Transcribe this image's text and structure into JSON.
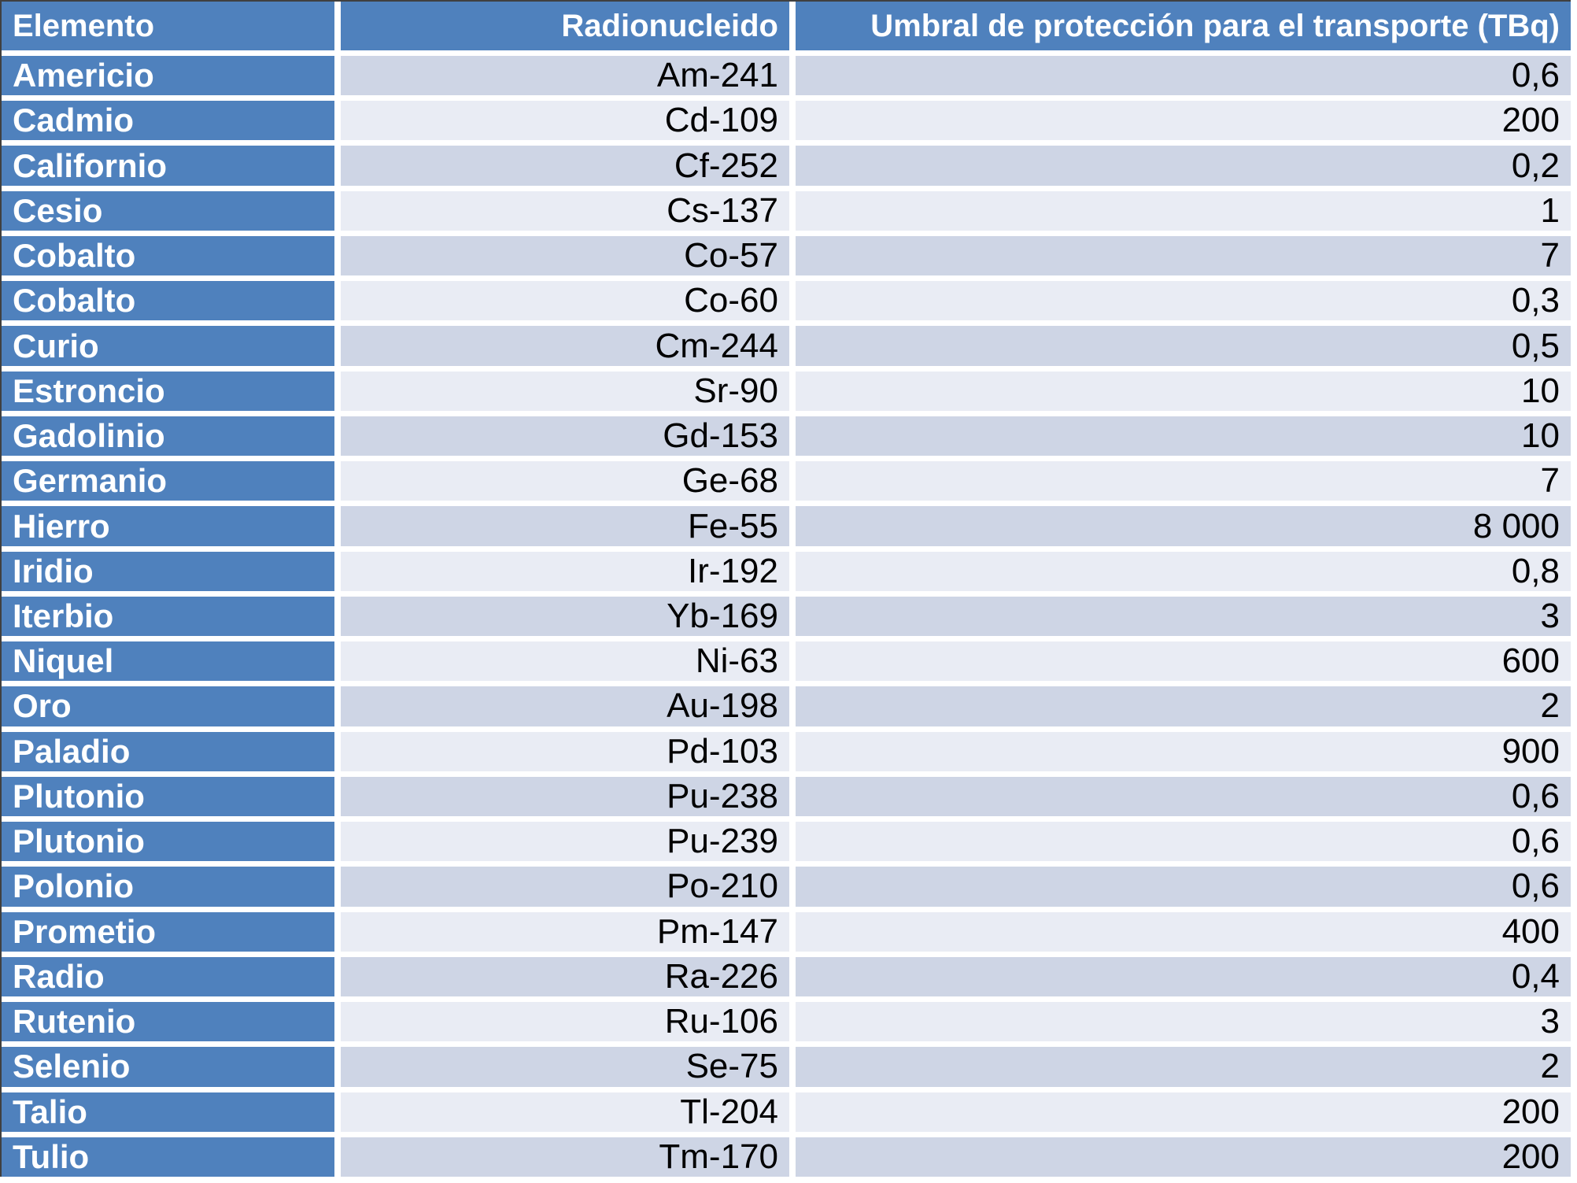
{
  "chart_data": {
    "type": "table",
    "title": "",
    "columns": [
      "Elemento",
      "Radionucleido",
      "Umbral de protección para el transporte (TBq)"
    ],
    "rows": [
      [
        "Americio",
        "Am-241",
        "0,6"
      ],
      [
        "Cadmio",
        "Cd-109",
        "200"
      ],
      [
        "Californio",
        "Cf-252",
        "0,2"
      ],
      [
        "Cesio",
        "Cs-137",
        "1"
      ],
      [
        "Cobalto",
        "Co-57",
        "7"
      ],
      [
        "Cobalto",
        "Co-60",
        "0,3"
      ],
      [
        "Curio",
        "Cm-244",
        "0,5"
      ],
      [
        "Estroncio",
        "Sr-90",
        "10"
      ],
      [
        "Gadolinio",
        "Gd-153",
        "10"
      ],
      [
        "Germanio",
        "Ge-68",
        "7"
      ],
      [
        "Hierro",
        "Fe-55",
        "8 000"
      ],
      [
        "Iridio",
        "Ir-192",
        "0,8"
      ],
      [
        "Iterbio",
        "Yb-169",
        "3"
      ],
      [
        "Niquel",
        "Ni-63",
        "600"
      ],
      [
        "Oro",
        "Au-198",
        "2"
      ],
      [
        "Paladio",
        "Pd-103",
        "900"
      ],
      [
        "Plutonio",
        "Pu-238",
        "0,6"
      ],
      [
        "Plutonio",
        "Pu-239",
        "0,6"
      ],
      [
        "Polonio",
        "Po-210",
        "0,6"
      ],
      [
        "Prometio",
        "Pm-147",
        "400"
      ],
      [
        "Radio",
        "Ra-226",
        "0,4"
      ],
      [
        "Rutenio",
        "Ru-106",
        "3"
      ],
      [
        "Selenio",
        "Se-75",
        "2"
      ],
      [
        "Talio",
        "Tl-204",
        "200"
      ],
      [
        "Tulio",
        "Tm-170",
        "200"
      ]
    ],
    "layout": {
      "banding": "alternating rows starting dark",
      "first_column_style": "header-blue",
      "value_alignment": "right"
    }
  },
  "colors": {
    "header_blue": "#4F81BD",
    "band_dark": "#CED5E5",
    "band_light": "#E9ECF4",
    "text_light": "#FFFFFF",
    "text_dark": "#000000",
    "separator": "#FFFFFF",
    "outer_border": "#404040"
  }
}
